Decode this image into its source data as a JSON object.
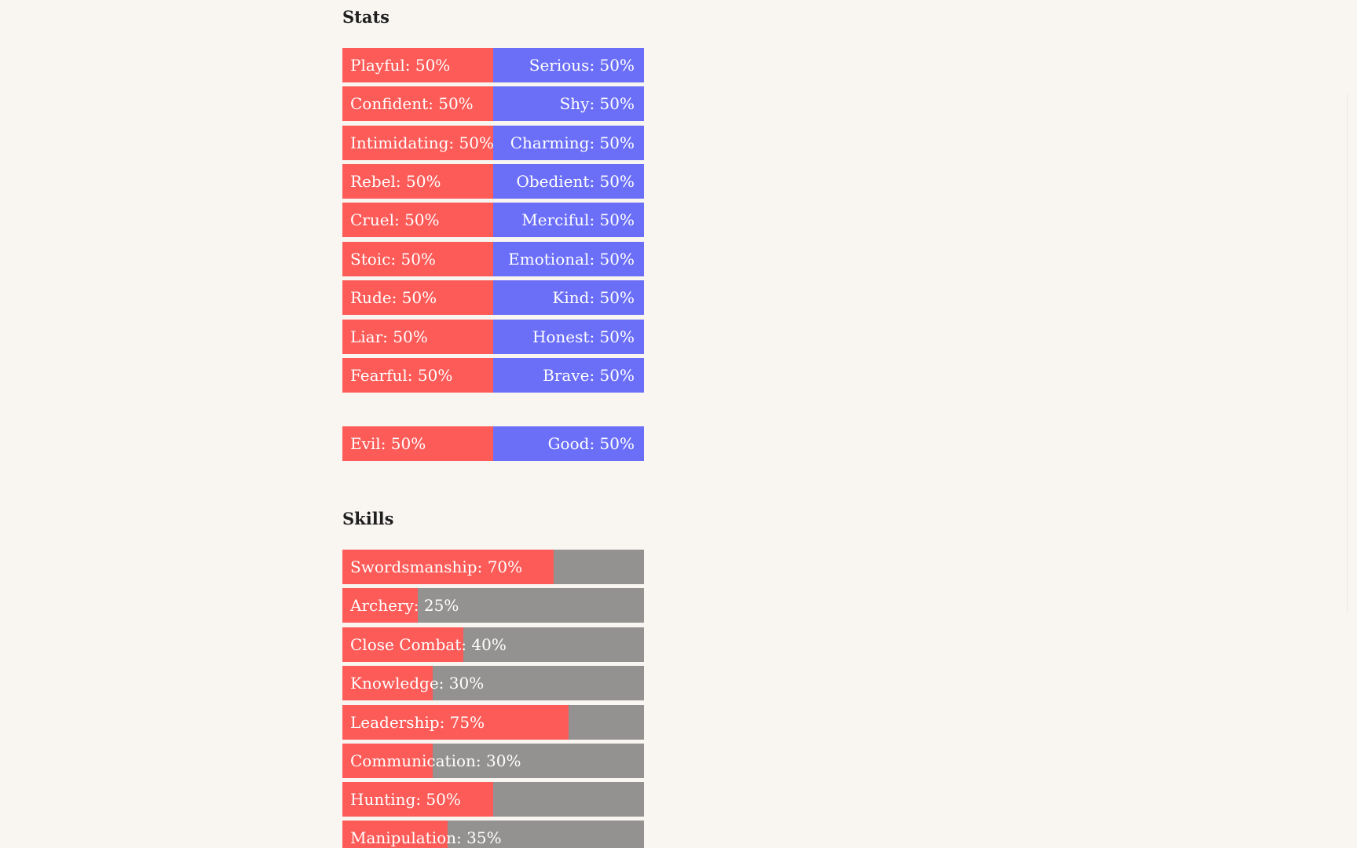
{
  "stats": {
    "title": "Stats",
    "pairs": [
      {
        "left": "Playful: 50%",
        "right": "Serious: 50%",
        "left_value": 50
      },
      {
        "left": "Confident: 50%",
        "right": "Shy: 50%",
        "left_value": 50
      },
      {
        "left": "Intimidating: 50%",
        "right": "Charming: 50%",
        "left_value": 50
      },
      {
        "left": "Rebel: 50%",
        "right": "Obedient: 50%",
        "left_value": 50
      },
      {
        "left": "Cruel: 50%",
        "right": "Merciful: 50%",
        "left_value": 50
      },
      {
        "left": "Stoic: 50%",
        "right": "Emotional: 50%",
        "left_value": 50
      },
      {
        "left": "Rude: 50%",
        "right": "Kind: 50%",
        "left_value": 50
      },
      {
        "left": "Liar: 50%",
        "right": "Honest: 50%",
        "left_value": 50
      },
      {
        "left": "Fearful: 50%",
        "right": "Brave: 50%",
        "left_value": 50
      }
    ],
    "alignment": {
      "left": "Evil: 50%",
      "right": "Good: 50%",
      "left_value": 50
    }
  },
  "skills": {
    "title": "Skills",
    "items": [
      {
        "label": "Swordsmanship: 70%",
        "value": 70
      },
      {
        "label": "Archery: 25%",
        "value": 25
      },
      {
        "label": "Close Combat: 40%",
        "value": 40
      },
      {
        "label": "Knowledge: 30%",
        "value": 30
      },
      {
        "label": "Leadership: 75%",
        "value": 75
      },
      {
        "label": "Communication: 30%",
        "value": 30
      },
      {
        "label": "Hunting: 50%",
        "value": 50
      },
      {
        "label": "Manipulation: 35%",
        "value": 35
      }
    ]
  },
  "colors": {
    "left_fill": "#fc5b58",
    "right_fill": "#6b6ff8",
    "track": "#939290",
    "background": "#f9f6f2"
  }
}
